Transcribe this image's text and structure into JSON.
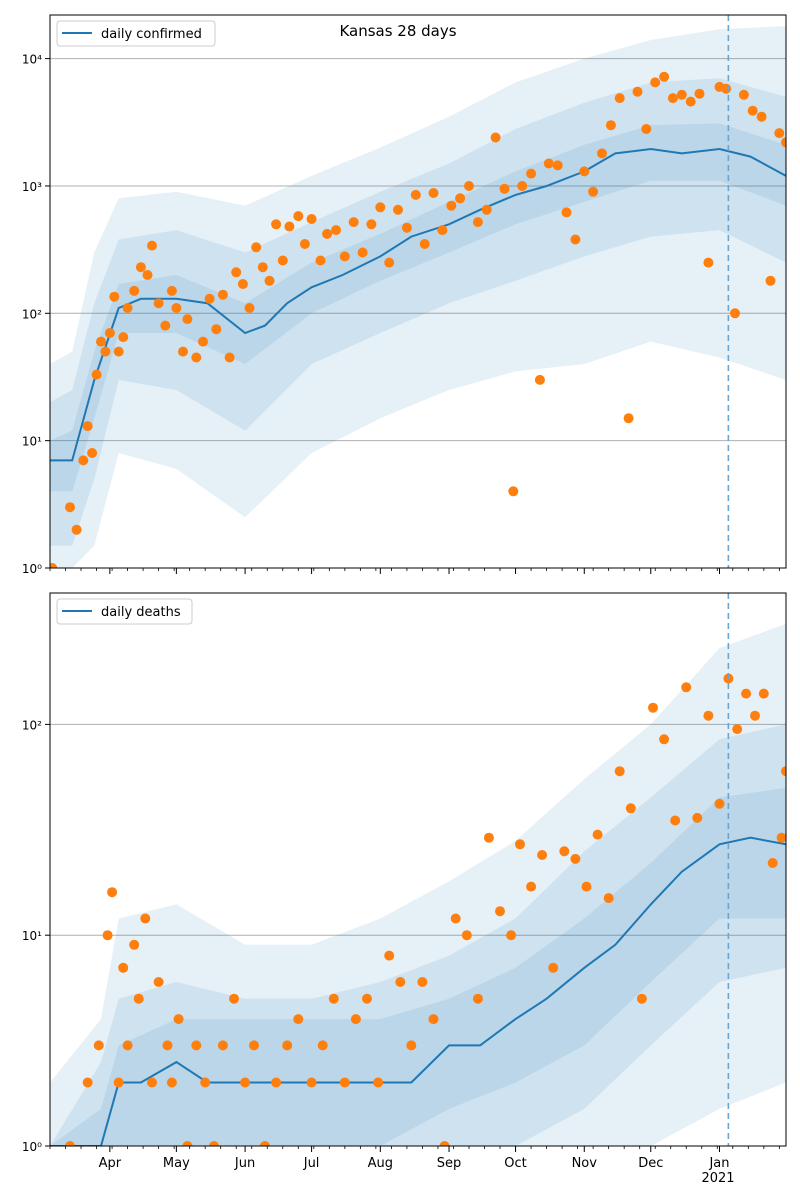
{
  "figure": {
    "title": "Kansas 28 days"
  },
  "style": {
    "line_color": "#1f77b4",
    "band_color": "#1f77b4",
    "point_color": "#ff7f0e",
    "grid_color": "#b0b0b0",
    "vline_color": "#6aa6d1"
  },
  "chart_data": [
    {
      "type": "line",
      "title": "Kansas 28 days",
      "yscale": "log",
      "ylim": [
        1,
        22000
      ],
      "xlim": [
        "2020-03-05",
        "2021-01-31"
      ],
      "y_ticks": [
        {
          "value": 1,
          "label": "10⁰"
        },
        {
          "value": 10,
          "label": "10¹"
        },
        {
          "value": 100,
          "label": "10²"
        },
        {
          "value": 1000,
          "label": "10³"
        },
        {
          "value": 10000,
          "label": "10⁴"
        }
      ],
      "legend": {
        "label": "daily confirmed",
        "placement": "top-left"
      },
      "grid": true,
      "vline": "2021-01-05",
      "series": [
        {
          "name": "daily confirmed",
          "kind": "line",
          "x": [
            "2020-03-05",
            "2020-03-15",
            "2020-03-25",
            "2020-04-05",
            "2020-04-15",
            "2020-05-01",
            "2020-05-15",
            "2020-06-01",
            "2020-06-10",
            "2020-06-20",
            "2020-07-01",
            "2020-07-15",
            "2020-08-01",
            "2020-08-15",
            "2020-09-01",
            "2020-09-15",
            "2020-10-01",
            "2020-10-15",
            "2020-11-01",
            "2020-11-15",
            "2020-12-01",
            "2020-12-15",
            "2021-01-01",
            "2021-01-15",
            "2021-01-31"
          ],
          "y": [
            7,
            7,
            30,
            110,
            130,
            130,
            120,
            70,
            80,
            120,
            160,
            200,
            280,
            400,
            500,
            650,
            850,
            1000,
            1300,
            1800,
            1950,
            1800,
            1950,
            1700,
            1200
          ]
        },
        {
          "name": "inner band",
          "kind": "band",
          "x": [
            "2020-03-05",
            "2020-03-15",
            "2020-03-25",
            "2020-04-05",
            "2020-05-01",
            "2020-06-01",
            "2020-07-01",
            "2020-08-01",
            "2020-09-01",
            "2020-10-01",
            "2020-11-01",
            "2020-12-01",
            "2021-01-01",
            "2021-01-31"
          ],
          "lower": [
            4,
            4,
            15,
            70,
            70,
            40,
            100,
            180,
            300,
            500,
            750,
            1100,
            1100,
            700
          ],
          "upper": [
            10,
            12,
            50,
            170,
            200,
            120,
            250,
            420,
            750,
            1300,
            2100,
            3000,
            3100,
            2100
          ]
        },
        {
          "name": "middle band",
          "kind": "band",
          "x": [
            "2020-03-05",
            "2020-03-15",
            "2020-03-25",
            "2020-04-05",
            "2020-05-01",
            "2020-06-01",
            "2020-07-01",
            "2020-08-01",
            "2020-09-01",
            "2020-10-01",
            "2020-11-01",
            "2020-12-01",
            "2021-01-01",
            "2021-01-31"
          ],
          "lower": [
            1.5,
            1.5,
            5,
            30,
            25,
            12,
            40,
            70,
            120,
            180,
            280,
            400,
            450,
            250
          ],
          "upper": [
            20,
            25,
            120,
            380,
            450,
            300,
            520,
            900,
            1500,
            2800,
            4500,
            6500,
            7000,
            5000
          ]
        },
        {
          "name": "outer band",
          "kind": "band",
          "x": [
            "2020-03-05",
            "2020-03-15",
            "2020-03-25",
            "2020-04-05",
            "2020-05-01",
            "2020-06-01",
            "2020-07-01",
            "2020-08-01",
            "2020-09-01",
            "2020-10-01",
            "2020-11-01",
            "2020-12-01",
            "2021-01-01",
            "2021-01-31"
          ],
          "lower": [
            1,
            1,
            1.5,
            8,
            6,
            2.5,
            8,
            15,
            25,
            35,
            40,
            60,
            45,
            30
          ],
          "upper": [
            40,
            50,
            300,
            800,
            900,
            700,
            1200,
            2000,
            3500,
            6500,
            10000,
            14000,
            17000,
            18000
          ]
        },
        {
          "name": "observed",
          "kind": "scatter",
          "x": [
            "2020-03-06",
            "2020-03-14",
            "2020-03-17",
            "2020-03-20",
            "2020-03-22",
            "2020-03-24",
            "2020-03-26",
            "2020-03-28",
            "2020-03-30",
            "2020-04-01",
            "2020-04-03",
            "2020-04-05",
            "2020-04-07",
            "2020-04-09",
            "2020-04-12",
            "2020-04-15",
            "2020-04-18",
            "2020-04-20",
            "2020-04-23",
            "2020-04-26",
            "2020-04-29",
            "2020-05-01",
            "2020-05-04",
            "2020-05-06",
            "2020-05-10",
            "2020-05-13",
            "2020-05-16",
            "2020-05-19",
            "2020-05-22",
            "2020-05-25",
            "2020-05-28",
            "2020-05-31",
            "2020-06-03",
            "2020-06-06",
            "2020-06-09",
            "2020-06-12",
            "2020-06-15",
            "2020-06-18",
            "2020-06-21",
            "2020-06-25",
            "2020-06-28",
            "2020-07-01",
            "2020-07-05",
            "2020-07-08",
            "2020-07-12",
            "2020-07-16",
            "2020-07-20",
            "2020-07-24",
            "2020-07-28",
            "2020-08-01",
            "2020-08-05",
            "2020-08-09",
            "2020-08-13",
            "2020-08-17",
            "2020-08-21",
            "2020-08-25",
            "2020-08-29",
            "2020-09-02",
            "2020-09-06",
            "2020-09-10",
            "2020-09-14",
            "2020-09-18",
            "2020-09-22",
            "2020-09-26",
            "2020-09-30",
            "2020-10-04",
            "2020-10-08",
            "2020-10-12",
            "2020-10-16",
            "2020-10-20",
            "2020-10-24",
            "2020-10-28",
            "2020-11-01",
            "2020-11-05",
            "2020-11-09",
            "2020-11-13",
            "2020-11-17",
            "2020-11-21",
            "2020-11-25",
            "2020-11-29",
            "2020-12-03",
            "2020-12-07",
            "2020-12-11",
            "2020-12-15",
            "2020-12-19",
            "2020-12-23",
            "2020-12-27",
            "2021-01-01",
            "2021-01-04",
            "2021-01-08",
            "2021-01-12",
            "2021-01-16",
            "2021-01-20",
            "2021-01-24",
            "2021-01-28",
            "2021-01-31"
          ],
          "y": [
            1,
            3,
            2,
            7,
            13,
            8,
            33,
            60,
            50,
            70,
            135,
            50,
            65,
            110,
            150,
            230,
            200,
            340,
            120,
            80,
            150,
            110,
            50,
            90,
            45,
            60,
            130,
            75,
            140,
            45,
            210,
            170,
            110,
            330,
            230,
            180,
            500,
            260,
            480,
            580,
            350,
            550,
            260,
            420,
            450,
            280,
            520,
            300,
            500,
            680,
            250,
            650,
            470,
            850,
            350,
            880,
            450,
            700,
            800,
            1000,
            520,
            650,
            2400,
            950,
            4,
            1000,
            1250,
            30,
            1500,
            1450,
            620,
            380,
            1300,
            900,
            1800,
            3000,
            4900,
            15,
            5500,
            2800,
            6500,
            7200,
            4900,
            5200,
            4600,
            5300,
            250,
            6000,
            5800,
            100,
            5200,
            3900,
            3500,
            180,
            2600,
            2200
          ]
        }
      ]
    },
    {
      "type": "line",
      "yscale": "log",
      "ylim": [
        1,
        420
      ],
      "xlim": [
        "2020-03-05",
        "2021-01-31"
      ],
      "y_ticks": [
        {
          "value": 1,
          "label": "10⁰"
        },
        {
          "value": 10,
          "label": "10¹"
        },
        {
          "value": 100,
          "label": "10²"
        }
      ],
      "x_ticks": [
        {
          "date": "2020-04-01",
          "label": "Apr"
        },
        {
          "date": "2020-05-01",
          "label": "May"
        },
        {
          "date": "2020-06-01",
          "label": "Jun"
        },
        {
          "date": "2020-07-01",
          "label": "Jul"
        },
        {
          "date": "2020-08-01",
          "label": "Aug"
        },
        {
          "date": "2020-09-01",
          "label": "Sep"
        },
        {
          "date": "2020-10-01",
          "label": "Oct"
        },
        {
          "date": "2020-11-01",
          "label": "Nov"
        },
        {
          "date": "2020-12-01",
          "label": "Dec"
        },
        {
          "date": "2021-01-01",
          "label": "Jan"
        }
      ],
      "x_year_label": "2021",
      "legend": {
        "label": "daily deaths",
        "placement": "top-left"
      },
      "grid": true,
      "vline": "2021-01-05",
      "series": [
        {
          "name": "daily deaths",
          "kind": "line",
          "x": [
            "2020-03-05",
            "2020-03-28",
            "2020-04-05",
            "2020-04-15",
            "2020-05-01",
            "2020-05-15",
            "2020-06-01",
            "2020-06-15",
            "2020-07-01",
            "2020-07-15",
            "2020-08-01",
            "2020-08-15",
            "2020-09-01",
            "2020-09-15",
            "2020-10-01",
            "2020-10-15",
            "2020-11-01",
            "2020-11-15",
            "2020-12-01",
            "2020-12-15",
            "2021-01-01",
            "2021-01-15",
            "2021-01-31"
          ],
          "y": [
            1,
            1,
            2,
            2,
            2.5,
            2,
            2,
            2,
            2,
            2,
            2,
            2,
            3,
            3,
            4,
            5,
            7,
            9,
            14,
            20,
            27,
            29,
            27
          ]
        },
        {
          "name": "inner band",
          "kind": "band",
          "x": [
            "2020-03-05",
            "2020-03-28",
            "2020-04-05",
            "2020-05-01",
            "2020-06-01",
            "2020-07-01",
            "2020-08-01",
            "2020-09-01",
            "2020-10-01",
            "2020-11-01",
            "2020-12-01",
            "2021-01-01",
            "2021-01-31"
          ],
          "lower": [
            1,
            1,
            1,
            1,
            1,
            1,
            1,
            1.5,
            2,
            3,
            6,
            12,
            12
          ],
          "upper": [
            1,
            1.5,
            3,
            4,
            4,
            4,
            4,
            5,
            7,
            12,
            22,
            45,
            50
          ]
        },
        {
          "name": "middle band",
          "kind": "band",
          "x": [
            "2020-03-05",
            "2020-03-28",
            "2020-04-05",
            "2020-05-01",
            "2020-06-01",
            "2020-07-01",
            "2020-08-01",
            "2020-09-01",
            "2020-10-01",
            "2020-11-01",
            "2020-12-01",
            "2021-01-01",
            "2021-01-31"
          ],
          "lower": [
            1,
            1,
            1,
            1,
            1,
            1,
            1,
            1,
            1,
            1.5,
            3,
            6,
            7
          ],
          "upper": [
            1,
            2.5,
            5,
            6,
            5,
            5,
            6,
            8,
            12,
            25,
            45,
            85,
            100
          ]
        },
        {
          "name": "outer band",
          "kind": "band",
          "x": [
            "2020-03-05",
            "2020-03-28",
            "2020-04-05",
            "2020-05-01",
            "2020-06-01",
            "2020-07-01",
            "2020-08-01",
            "2020-09-01",
            "2020-10-01",
            "2020-11-01",
            "2020-12-01",
            "2021-01-01",
            "2021-01-31"
          ],
          "lower": [
            1,
            1,
            1,
            1,
            1,
            1,
            1,
            1,
            1,
            1,
            1,
            1.5,
            2
          ],
          "upper": [
            2,
            4,
            12,
            14,
            9,
            9,
            12,
            18,
            28,
            55,
            100,
            230,
            300
          ]
        },
        {
          "name": "observed",
          "kind": "scatter",
          "x": [
            "2020-03-14",
            "2020-03-22",
            "2020-03-27",
            "2020-03-31",
            "2020-04-02",
            "2020-04-05",
            "2020-04-07",
            "2020-04-09",
            "2020-04-12",
            "2020-04-14",
            "2020-04-17",
            "2020-04-20",
            "2020-04-23",
            "2020-04-27",
            "2020-04-29",
            "2020-05-02",
            "2020-05-06",
            "2020-05-10",
            "2020-05-14",
            "2020-05-18",
            "2020-05-22",
            "2020-05-27",
            "2020-06-01",
            "2020-06-05",
            "2020-06-10",
            "2020-06-15",
            "2020-06-20",
            "2020-06-25",
            "2020-07-01",
            "2020-07-06",
            "2020-07-11",
            "2020-07-16",
            "2020-07-21",
            "2020-07-26",
            "2020-07-31",
            "2020-08-05",
            "2020-08-10",
            "2020-08-15",
            "2020-08-20",
            "2020-08-25",
            "2020-08-30",
            "2020-09-04",
            "2020-09-09",
            "2020-09-14",
            "2020-09-19",
            "2020-09-24",
            "2020-09-29",
            "2020-10-03",
            "2020-10-08",
            "2020-10-13",
            "2020-10-18",
            "2020-10-23",
            "2020-10-28",
            "2020-11-02",
            "2020-11-07",
            "2020-11-12",
            "2020-11-17",
            "2020-11-22",
            "2020-11-27",
            "2020-12-02",
            "2020-12-07",
            "2020-12-12",
            "2020-12-17",
            "2020-12-22",
            "2020-12-27",
            "2021-01-01",
            "2021-01-05",
            "2021-01-09",
            "2021-01-13",
            "2021-01-17",
            "2021-01-21",
            "2021-01-25",
            "2021-01-29",
            "2021-01-31"
          ],
          "y": [
            1,
            2,
            3,
            10,
            16,
            2,
            7,
            3,
            9,
            5,
            12,
            2,
            6,
            3,
            2,
            4,
            1,
            3,
            2,
            1,
            3,
            5,
            2,
            3,
            1,
            2,
            3,
            4,
            2,
            3,
            5,
            2,
            4,
            5,
            2,
            8,
            6,
            3,
            6,
            4,
            1,
            12,
            10,
            5,
            29,
            13,
            10,
            27,
            17,
            24,
            7,
            25,
            23,
            17,
            30,
            15,
            60,
            40,
            5,
            120,
            85,
            35,
            150,
            36,
            110,
            42,
            165,
            95,
            140,
            110,
            140,
            22,
            29,
            60
          ]
        }
      ]
    }
  ]
}
